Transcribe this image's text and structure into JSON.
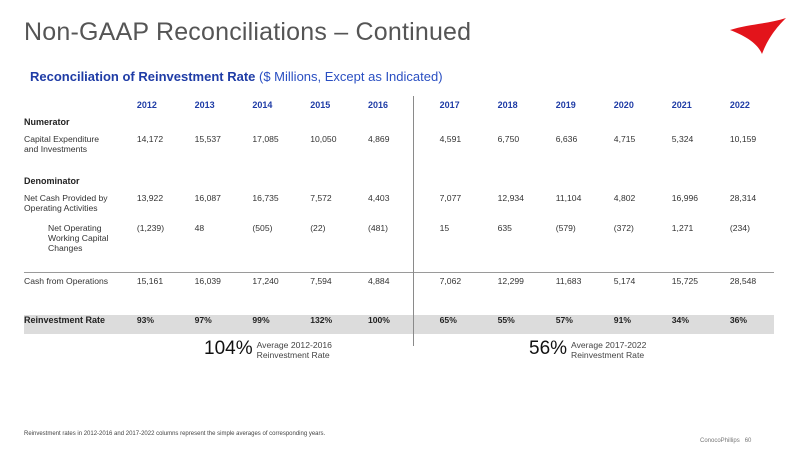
{
  "title": "Non-GAAP Reconciliations – Continued",
  "subtitle_bold": "Reconciliation of Reinvestment Rate",
  "subtitle_light": "($ Millions, Except as Indicated)",
  "years": [
    "2012",
    "2013",
    "2014",
    "2015",
    "2016",
    "2017",
    "2018",
    "2019",
    "2020",
    "2021",
    "2022"
  ],
  "numerator_label": "Numerator",
  "denominator_label": "Denominator",
  "rows": {
    "capex": {
      "label_line1": "Capital Expenditure",
      "label_line2": "and Investments",
      "values": [
        "14,172",
        "15,537",
        "17,085",
        "10,050",
        "4,869",
        "4,591",
        "6,750",
        "6,636",
        "4,715",
        "5,324",
        "10,159"
      ]
    },
    "ncf": {
      "label_line1": "Net Cash Provided by",
      "label_line2": "Operating Activities",
      "values": [
        "13,922",
        "16,087",
        "16,735",
        "7,572",
        "4,403",
        "7,077",
        "12,934",
        "11,104",
        "4,802",
        "16,996",
        "28,314"
      ]
    },
    "nowc": {
      "label_line1": "Net Operating",
      "label_line2": "Working Capital",
      "label_line3": "Changes",
      "values": [
        "(1,239)",
        "48",
        "(505)",
        "(22)",
        "(481)",
        "15",
        "635",
        "(579)",
        "(372)",
        "1,271",
        "(234)"
      ]
    },
    "cfo": {
      "label_line1": "Cash from Operations",
      "values": [
        "15,161",
        "16,039",
        "17,240",
        "7,594",
        "4,884",
        "7,062",
        "12,299",
        "11,683",
        "5,174",
        "15,725",
        "28,548"
      ]
    },
    "rr": {
      "label_line1": "Reinvestment Rate",
      "values": [
        "93%",
        "97%",
        "99%",
        "132%",
        "100%",
        "65%",
        "55%",
        "57%",
        "91%",
        "34%",
        "36%"
      ]
    }
  },
  "avg1": {
    "value": "104%",
    "line1": "Average 2012-2016",
    "line2": "Reinvestment Rate"
  },
  "avg2": {
    "value": "56%",
    "line1": "Average 2017-2022",
    "line2": "Reinvestment Rate"
  },
  "footnote": "Reinvestment rates in 2012-2016 and 2017-2022 columns represent the simple averages of corresponding years.",
  "footer": {
    "company": "ConocoPhillips",
    "page": "60"
  },
  "colors": {
    "accent": "#1f3ca6",
    "logo_red": "#e3141b"
  }
}
